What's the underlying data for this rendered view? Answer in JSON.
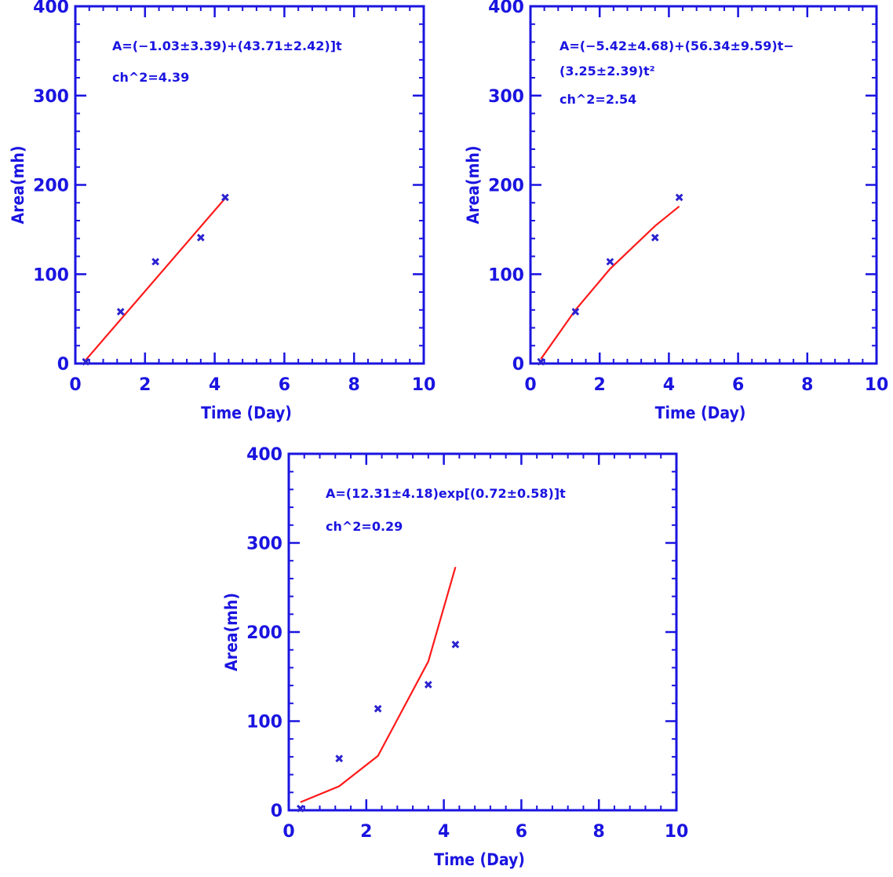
{
  "colors": {
    "axis": "#1a14e0",
    "fit_line": "#ff1a1a",
    "points": "#2a22d0",
    "background": "#ffffff"
  },
  "chart_data": [
    {
      "type": "scatter",
      "xlabel": "Time (Day)",
      "ylabel": "Area(mh)",
      "xlim": [
        0,
        10
      ],
      "ylim": [
        0,
        400
      ],
      "xticks": [
        0,
        2,
        4,
        6,
        8,
        10
      ],
      "yticks": [
        0,
        100,
        200,
        300,
        400
      ],
      "annotations": [
        "A=(−1.03±3.39)+(43.71±2.42)]t",
        "ch^2=4.39"
      ],
      "series": [
        {
          "kind": "points",
          "marker": "x",
          "x": [
            0.3,
            1.3,
            2.3,
            3.6,
            4.3
          ],
          "y": [
            2,
            58,
            114,
            141,
            186
          ]
        },
        {
          "kind": "line",
          "x": [
            0.3,
            4.3
          ],
          "y": [
            4,
            185
          ]
        }
      ]
    },
    {
      "type": "scatter",
      "xlabel": "Time (Day)",
      "ylabel": "Area(mh)",
      "xlim": [
        0,
        10
      ],
      "ylim": [
        0,
        400
      ],
      "xticks": [
        0,
        2,
        4,
        6,
        8,
        10
      ],
      "yticks": [
        0,
        100,
        200,
        300,
        400
      ],
      "annotations": [
        "A=(−5.42±4.68)+(56.34±9.59)t−",
        "(3.25±2.39)t²",
        "ch^2=2.54"
      ],
      "series": [
        {
          "kind": "points",
          "marker": "x",
          "x": [
            0.3,
            1.3,
            2.3,
            3.6,
            4.3
          ],
          "y": [
            2,
            58,
            114,
            141,
            186
          ]
        },
        {
          "kind": "line",
          "x": [
            0.3,
            1.3,
            2.3,
            3.6,
            4.3
          ],
          "y": [
            5,
            60,
            106,
            154,
            176
          ]
        }
      ]
    },
    {
      "type": "scatter",
      "xlabel": "Time (Day)",
      "ylabel": "Area(mh)",
      "xlim": [
        0,
        10
      ],
      "ylim": [
        0,
        400
      ],
      "xticks": [
        0,
        2,
        4,
        6,
        8,
        10
      ],
      "yticks": [
        0,
        100,
        200,
        300,
        400
      ],
      "annotations": [
        "A=(12.31±4.18)exp[(0.72±0.58)]t",
        "ch^2=0.29"
      ],
      "series": [
        {
          "kind": "points",
          "marker": "x",
          "x": [
            0.3,
            1.3,
            2.3,
            3.6,
            4.3
          ],
          "y": [
            2,
            58,
            114,
            141,
            186
          ]
        },
        {
          "kind": "line",
          "x": [
            0.3,
            1.3,
            2.3,
            3.6,
            4.3
          ],
          "y": [
            9,
            27,
            61,
            167,
            273
          ]
        }
      ]
    }
  ]
}
